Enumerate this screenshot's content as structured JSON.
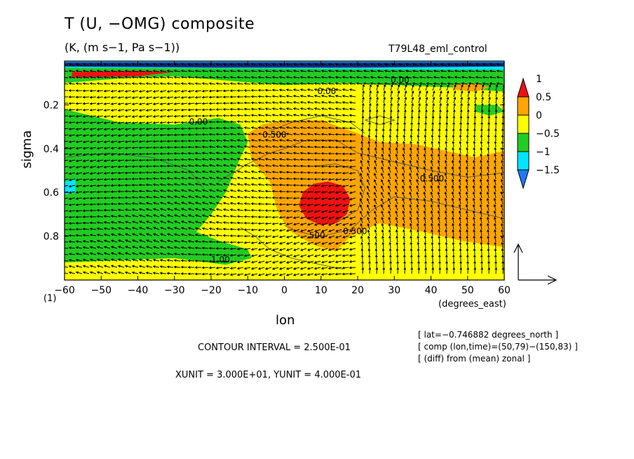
{
  "chart_data": {
    "type": "heatmap",
    "title": "T (U, −OMG) composite",
    "units_label": "(K, (m s−1, Pa s−1))",
    "experiment": "T79L48_eml_control",
    "xlabel": "lon",
    "xunit": "(degrees_east)",
    "ylabel": "sigma",
    "panel_number": "(1)",
    "x_ticks": [
      -60,
      -50,
      -40,
      -30,
      -20,
      -10,
      0,
      10,
      20,
      30,
      40,
      50,
      60
    ],
    "y_ticks": [
      0.2,
      0.4,
      0.6,
      0.8
    ],
    "xlim": [
      -60,
      60
    ],
    "ylim": [
      1.0,
      0.0
    ],
    "colorbar": {
      "levels": [
        -1.5,
        -1,
        -0.5,
        0,
        0.5,
        1
      ],
      "labels": [
        "−1.5",
        "−1",
        "−0.5",
        "0",
        "0.5",
        "1"
      ],
      "colors": [
        "#1e78ff",
        "#00e5ff",
        "#22cc22",
        "#ffff00",
        "#ffa500",
        "#ee1111"
      ]
    },
    "contour_labels": [
      "0.00",
      "0.00",
      "0.500",
      "0.500",
      "0.500",
      ".500",
      "1.00",
      "0.00"
    ],
    "contour_interval": "CONTOUR INTERVAL = 2.500E-01",
    "vector_units": "XUNIT = 3.000E+01, YUNIT = 4.000E-01",
    "info": [
      "[ lat=−0.746882 degrees_north ]",
      "[ comp (lon,time)=(50,79)−(150,83) ]",
      "[ (diff) from (mean) zonal ]"
    ],
    "field_regions": [
      {
        "value": 0.25,
        "desc": "yellow background"
      },
      {
        "value": -0.25,
        "desc": "green west region",
        "lon": [
          -60,
          -8
        ],
        "sigma": [
          0.25,
          0.93
        ]
      },
      {
        "value": 0.75,
        "desc": "orange east region",
        "lon": [
          -12,
          60
        ],
        "sigma": [
          0.25,
          0.85
        ]
      },
      {
        "value": 1.25,
        "desc": "red core",
        "lon": [
          5,
          17
        ],
        "sigma": [
          0.55,
          0.74
        ]
      }
    ]
  }
}
